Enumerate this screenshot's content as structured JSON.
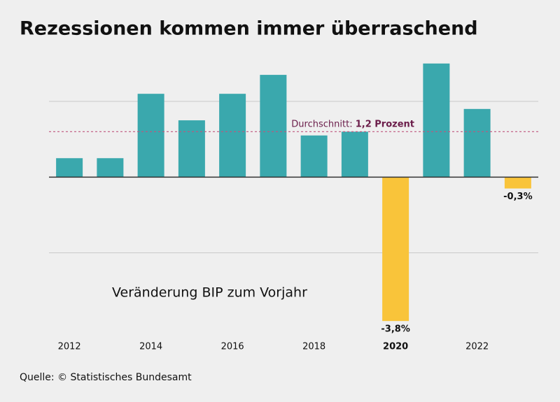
{
  "chart_data": {
    "type": "bar",
    "title": "Rezessionen kommen immer überraschend",
    "subtitle": "Veränderung BIP zum Vorjahr",
    "source": "Quelle: © Statistisches Bundesamt",
    "categories": [
      "2012",
      null,
      "2014",
      null,
      "2016",
      null,
      "2018",
      null,
      "2020",
      null,
      "2022",
      null
    ],
    "bold_category": 8,
    "values": [
      0.5,
      0.5,
      2.2,
      1.5,
      2.2,
      2.7,
      1.1,
      1.2,
      -3.8,
      3.0,
      1.8,
      -0.3
    ],
    "value_labels": [
      null,
      null,
      null,
      null,
      null,
      null,
      null,
      null,
      "-3,8%",
      null,
      null,
      "-0,3%"
    ],
    "colors": [
      "#3aa8ad",
      "#3aa8ad",
      "#3aa8ad",
      "#3aa8ad",
      "#3aa8ad",
      "#3aa8ad",
      "#3aa8ad",
      "#3aa8ad",
      "#f9c43a",
      "#3aa8ad",
      "#3aa8ad",
      "#f9c43a"
    ],
    "ylim": [
      -4,
      3.2
    ],
    "gridlines": [
      -2,
      2
    ],
    "average": {
      "value": 1.2,
      "label": "Durchschnitt:",
      "value_label": "1,2 Prozent",
      "color": "#6b1d4a"
    }
  }
}
